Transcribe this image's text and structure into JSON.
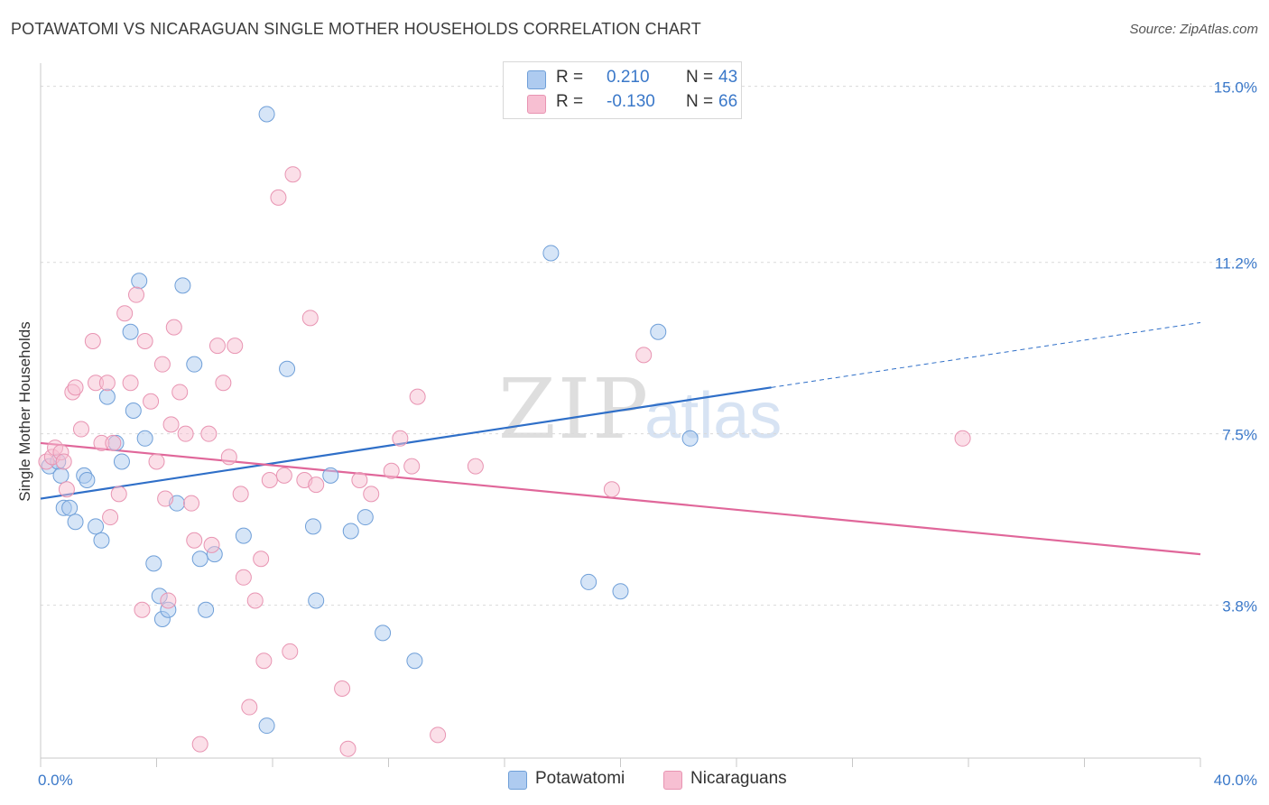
{
  "title": "POTAWATOMI VS NICARAGUAN SINGLE MOTHER HOUSEHOLDS CORRELATION CHART",
  "source": "Source: ZipAtlas.com",
  "watermark": {
    "zip": "ZIP",
    "atlas": "atlas"
  },
  "legend": {
    "rows": [
      {
        "r_label": "R =",
        "r_value": "0.210",
        "n_label": "N =",
        "n_value": "43",
        "color": "#aecbf0",
        "border": "#6f9fd8"
      },
      {
        "r_label": "R =",
        "r_value": "-0.130",
        "n_label": "N =",
        "n_value": "66",
        "color": "#f7bfd2",
        "border": "#e894b2"
      }
    ]
  },
  "bottom_legend": [
    {
      "label": "Potawatomi",
      "color": "#aecbf0",
      "border": "#6f9fd8"
    },
    {
      "label": "Nicaraguans",
      "color": "#f7bfd2",
      "border": "#e894b2"
    }
  ],
  "chart_data": {
    "type": "scatter",
    "ylabel": "Single Mother Households",
    "xlim": [
      0,
      40
    ],
    "ylim": [
      0.5,
      15.5
    ],
    "x_tick_labels": [
      {
        "value": 0,
        "label": "0.0%"
      },
      {
        "value": 40,
        "label": "40.0%"
      }
    ],
    "y_tick_labels": [
      {
        "value": 3.8,
        "label": "3.8%"
      },
      {
        "value": 7.5,
        "label": "7.5%"
      },
      {
        "value": 11.2,
        "label": "11.2%"
      },
      {
        "value": 15.0,
        "label": "15.0%"
      }
    ],
    "grid": "horizontal dashed",
    "legend_position": "top-center",
    "series": [
      {
        "name": "Potawatomi",
        "color": "#6f9fd8",
        "fill": "#aecbf0",
        "line_color": "#2f6fc8",
        "trend": {
          "x0": 0,
          "y0": 6.1,
          "x1": 25.2,
          "y1": 8.5,
          "dash_x1": 40,
          "dash_y1": 9.9
        },
        "points": [
          [
            0.3,
            6.8
          ],
          [
            0.6,
            6.9
          ],
          [
            0.7,
            6.6
          ],
          [
            0.8,
            5.9
          ],
          [
            1.0,
            5.9
          ],
          [
            1.2,
            5.6
          ],
          [
            1.5,
            6.6
          ],
          [
            1.6,
            6.5
          ],
          [
            1.9,
            5.5
          ],
          [
            2.1,
            5.2
          ],
          [
            2.3,
            8.3
          ],
          [
            2.6,
            7.3
          ],
          [
            2.8,
            6.9
          ],
          [
            3.1,
            9.7
          ],
          [
            3.2,
            8.0
          ],
          [
            3.4,
            10.8
          ],
          [
            3.6,
            7.4
          ],
          [
            3.9,
            4.7
          ],
          [
            4.1,
            4.0
          ],
          [
            4.2,
            3.5
          ],
          [
            4.4,
            3.7
          ],
          [
            4.7,
            6.0
          ],
          [
            4.9,
            10.7
          ],
          [
            5.3,
            9.0
          ],
          [
            5.5,
            4.8
          ],
          [
            5.7,
            3.7
          ],
          [
            6.0,
            4.9
          ],
          [
            7.0,
            5.3
          ],
          [
            7.8,
            1.2
          ],
          [
            7.8,
            14.4
          ],
          [
            8.5,
            8.9
          ],
          [
            9.4,
            5.5
          ],
          [
            9.5,
            3.9
          ],
          [
            10.0,
            6.6
          ],
          [
            10.7,
            5.4
          ],
          [
            11.2,
            5.7
          ],
          [
            11.8,
            3.2
          ],
          [
            12.9,
            2.6
          ],
          [
            17.6,
            11.4
          ],
          [
            18.9,
            4.3
          ],
          [
            21.3,
            9.7
          ],
          [
            22.4,
            7.4
          ],
          [
            20.0,
            4.1
          ]
        ]
      },
      {
        "name": "Nicaraguans",
        "color": "#e894b2",
        "fill": "#f7bfd2",
        "line_color": "#e0679a",
        "trend": {
          "x0": 0,
          "y0": 7.3,
          "x1": 40,
          "y1": 4.9
        },
        "points": [
          [
            0.2,
            6.9
          ],
          [
            0.4,
            7.0
          ],
          [
            0.5,
            7.2
          ],
          [
            0.7,
            7.1
          ],
          [
            0.8,
            6.9
          ],
          [
            0.9,
            6.3
          ],
          [
            1.1,
            8.4
          ],
          [
            1.2,
            8.5
          ],
          [
            1.4,
            7.6
          ],
          [
            1.8,
            9.5
          ],
          [
            1.9,
            8.6
          ],
          [
            2.1,
            7.3
          ],
          [
            2.3,
            8.6
          ],
          [
            2.4,
            5.7
          ],
          [
            2.5,
            7.3
          ],
          [
            2.7,
            6.2
          ],
          [
            2.9,
            10.1
          ],
          [
            3.1,
            8.6
          ],
          [
            3.3,
            10.5
          ],
          [
            3.5,
            3.7
          ],
          [
            3.6,
            9.5
          ],
          [
            3.8,
            8.2
          ],
          [
            4.0,
            6.9
          ],
          [
            4.2,
            9.0
          ],
          [
            4.4,
            3.9
          ],
          [
            4.5,
            7.7
          ],
          [
            4.6,
            9.8
          ],
          [
            4.8,
            8.4
          ],
          [
            5.0,
            7.5
          ],
          [
            5.2,
            6.0
          ],
          [
            5.3,
            5.2
          ],
          [
            5.5,
            0.8
          ],
          [
            5.8,
            7.5
          ],
          [
            5.9,
            5.1
          ],
          [
            6.1,
            9.4
          ],
          [
            6.3,
            8.6
          ],
          [
            6.5,
            7.0
          ],
          [
            6.7,
            9.4
          ],
          [
            6.9,
            6.2
          ],
          [
            7.0,
            4.4
          ],
          [
            7.2,
            1.6
          ],
          [
            7.4,
            3.9
          ],
          [
            7.6,
            4.8
          ],
          [
            7.7,
            2.6
          ],
          [
            7.9,
            6.5
          ],
          [
            8.2,
            12.6
          ],
          [
            8.4,
            6.6
          ],
          [
            8.6,
            2.8
          ],
          [
            8.7,
            13.1
          ],
          [
            9.1,
            6.5
          ],
          [
            9.3,
            10.0
          ],
          [
            9.5,
            6.4
          ],
          [
            10.4,
            2.0
          ],
          [
            10.6,
            0.7
          ],
          [
            11.0,
            6.5
          ],
          [
            11.4,
            6.2
          ],
          [
            12.4,
            7.4
          ],
          [
            12.8,
            6.8
          ],
          [
            13.0,
            8.3
          ],
          [
            13.7,
            1.0
          ],
          [
            15.0,
            6.8
          ],
          [
            19.7,
            6.3
          ],
          [
            20.8,
            9.2
          ],
          [
            31.8,
            7.4
          ],
          [
            12.1,
            6.7
          ],
          [
            4.3,
            6.1
          ]
        ]
      }
    ]
  }
}
